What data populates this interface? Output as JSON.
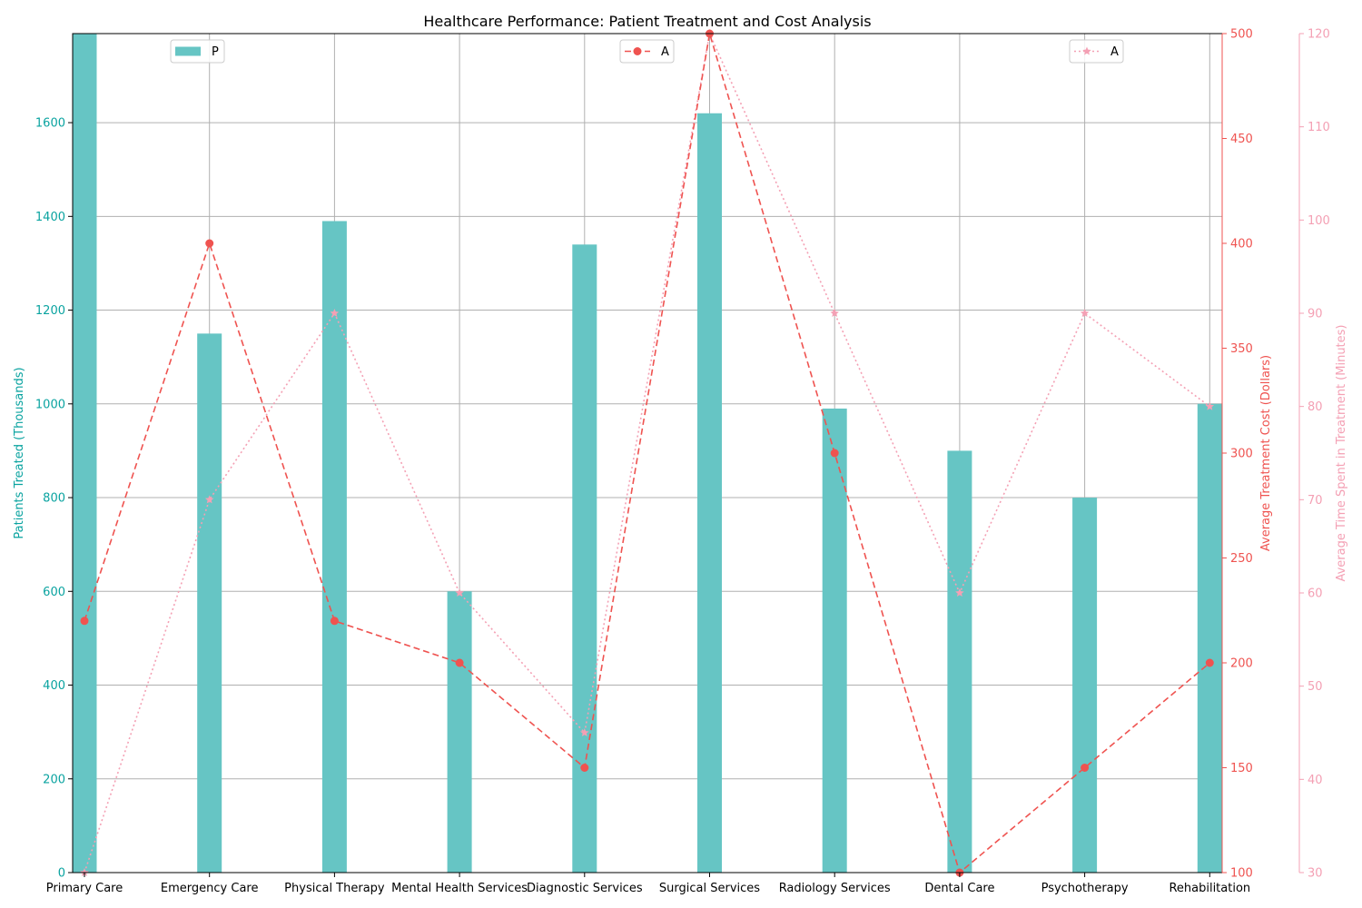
{
  "chart_data": {
    "type": "bar",
    "title": "Healthcare Performance: Patient Treatment and Cost Analysis",
    "categories": [
      "Primary Care",
      "Emergency Care",
      "Physical Therapy",
      "Mental Health Services",
      "Diagnostic Services",
      "Surgical Services",
      "Radiology Services",
      "Dental Care",
      "Psychotherapy",
      "Rehabilitation"
    ],
    "grid": true,
    "axes": {
      "left": {
        "label": "Patients Treated (Thousands)",
        "ylim": [
          0,
          1790
        ],
        "ticks": [
          0,
          200,
          400,
          600,
          800,
          1000,
          1200,
          1400,
          1600
        ],
        "color": "#0aa3a0"
      },
      "right1": {
        "label": "Average Treatment Cost (Dollars)",
        "ylim": [
          100,
          500
        ],
        "ticks": [
          100,
          150,
          200,
          250,
          300,
          350,
          400,
          450,
          500
        ],
        "color": "#ef5350"
      },
      "right2": {
        "label": "Average Time Spent in Treatment (Minutes)",
        "ylim": [
          30,
          120
        ],
        "ticks": [
          30,
          40,
          50,
          60,
          70,
          80,
          90,
          100,
          110,
          120
        ],
        "color": "#f4a0b4"
      }
    },
    "series": [
      {
        "name": "P",
        "kind": "bar",
        "axis": "left",
        "color": "#66c5c4",
        "values": [
          1800,
          1150,
          1390,
          600,
          1340,
          1620,
          990,
          900,
          800,
          1000
        ]
      },
      {
        "name": "A",
        "kind": "line",
        "axis": "right1",
        "color": "#ef5350",
        "line_style": "dashed",
        "marker": "circle",
        "values": [
          220,
          400,
          220,
          200,
          150,
          500,
          300,
          100,
          150,
          200
        ]
      },
      {
        "name": "A",
        "kind": "line",
        "axis": "right2",
        "color": "#f4a0b4",
        "line_style": "dotted",
        "marker": "star",
        "values": [
          30,
          70,
          90,
          60,
          45,
          120,
          90,
          60,
          90,
          80
        ]
      }
    ],
    "legends": [
      "upper-left",
      "upper-center",
      "upper-right"
    ]
  }
}
